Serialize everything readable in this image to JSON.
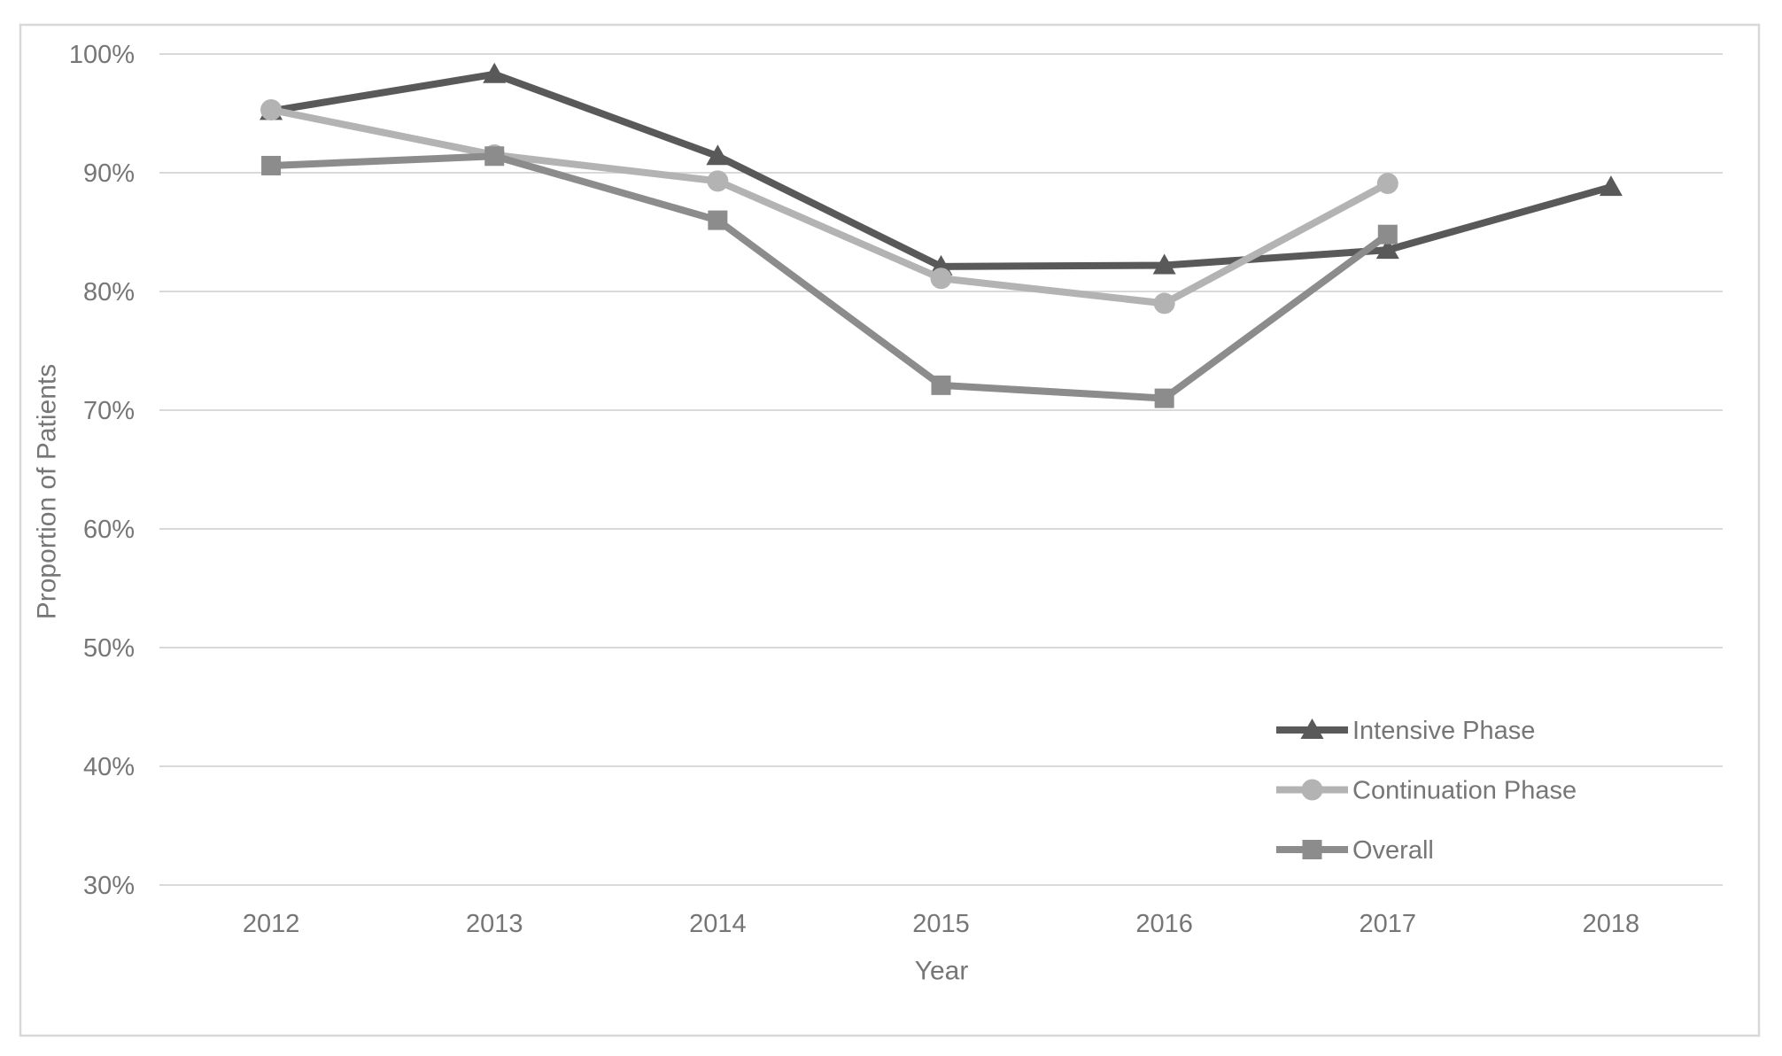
{
  "chart_data": {
    "type": "line",
    "title": "",
    "xlabel": "Year",
    "ylabel": "Proportion of Patients",
    "categories": [
      "2012",
      "2013",
      "2014",
      "2015",
      "2016",
      "2017",
      "2018"
    ],
    "ylim": [
      30,
      100
    ],
    "yticks": [
      30,
      40,
      50,
      60,
      70,
      80,
      90,
      100
    ],
    "ytick_suffix": "%",
    "grid": true,
    "legend_position": "inside-bottom-right",
    "series": [
      {
        "name": "Intensive Phase",
        "marker": "triangle",
        "color": "#595959",
        "values": [
          95.2,
          98.3,
          91.4,
          82.1,
          82.2,
          83.5,
          88.8
        ]
      },
      {
        "name": "Continuation Phase",
        "marker": "circle",
        "color": "#b3b3b3",
        "values": [
          95.3,
          91.5,
          89.3,
          81.1,
          79.0,
          89.1,
          null
        ]
      },
      {
        "name": "Overall",
        "marker": "square",
        "color": "#8c8c8c",
        "values": [
          90.6,
          91.4,
          86.0,
          72.1,
          71.0,
          84.8,
          null
        ]
      }
    ]
  },
  "styles": {
    "grid_color": "#d9d9d9",
    "text_color": "#767676",
    "frame_color": "#d8d8d8",
    "background": "#ffffff"
  }
}
